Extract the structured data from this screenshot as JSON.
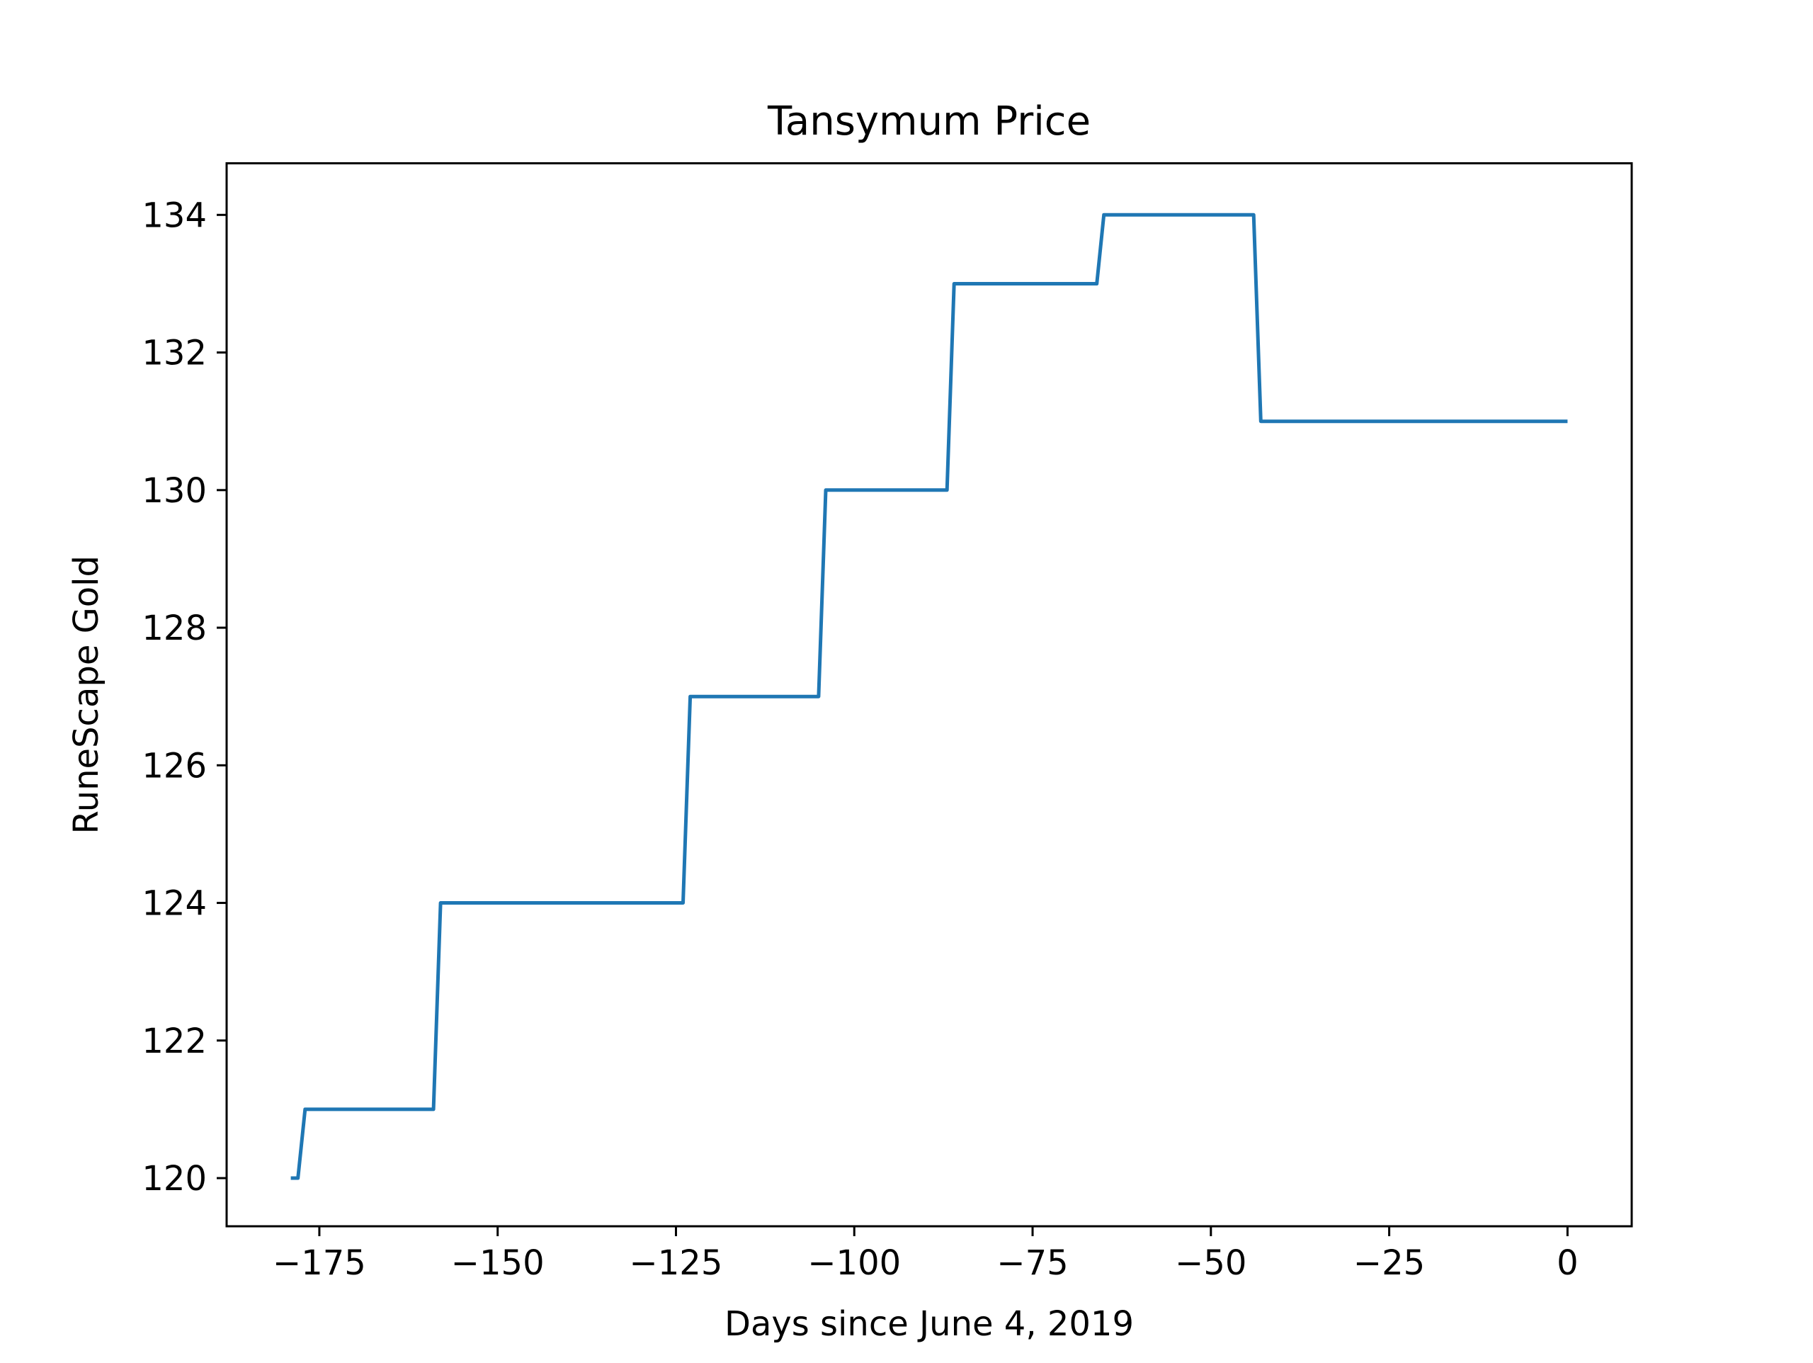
{
  "chart_data": {
    "type": "line",
    "title": "Tansymum Price",
    "xlabel": "Days since June 4, 2019",
    "ylabel": "RuneScape Gold",
    "xlim": [
      -188,
      9
    ],
    "ylim": [
      119.3,
      134.75
    ],
    "xticks": [
      -175,
      -150,
      -125,
      -100,
      -75,
      -50,
      -25,
      0
    ],
    "xtick_labels": [
      "−175",
      "−150",
      "−125",
      "−100",
      "−75",
      "−50",
      "−25",
      "0"
    ],
    "yticks": [
      120,
      122,
      124,
      126,
      128,
      130,
      132,
      134
    ],
    "ytick_labels": [
      "120",
      "122",
      "124",
      "126",
      "128",
      "130",
      "132",
      "134"
    ],
    "grid": false,
    "legend": false,
    "series": [
      {
        "color": "#1f77b4",
        "x": [
          -179,
          -178,
          -177,
          -159,
          -158,
          -124,
          -123,
          -105,
          -104,
          -87,
          -86,
          -66,
          -65,
          -44,
          -43,
          0
        ],
        "y": [
          120,
          120,
          121,
          121,
          124,
          124,
          127,
          127,
          130,
          130,
          133,
          133,
          134,
          134,
          131,
          131
        ]
      }
    ]
  }
}
